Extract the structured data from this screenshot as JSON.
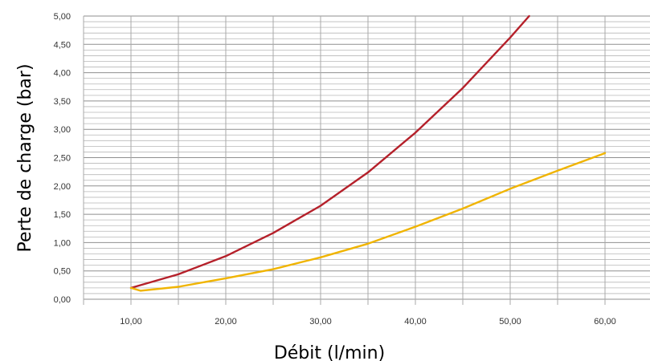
{
  "chart_data": {
    "type": "line",
    "title": "",
    "xlabel": "Débit (l/min)",
    "ylabel": "Perte de charge (bar)",
    "xlim": [
      5,
      65
    ],
    "ylim": [
      0,
      5
    ],
    "x_ticks": [
      {
        "value": 10,
        "label": "10,00"
      },
      {
        "value": 20,
        "label": "20,00"
      },
      {
        "value": 30,
        "label": "30,00"
      },
      {
        "value": 40,
        "label": "40,00"
      },
      {
        "value": 50,
        "label": "50,00"
      },
      {
        "value": 60,
        "label": "60,00"
      }
    ],
    "y_ticks": [
      {
        "value": 0.0,
        "label": "0,00"
      },
      {
        "value": 0.5,
        "label": "0,50"
      },
      {
        "value": 1.0,
        "label": "1,00"
      },
      {
        "value": 1.5,
        "label": "1,50"
      },
      {
        "value": 2.0,
        "label": "2,00"
      },
      {
        "value": 2.5,
        "label": "2,50"
      },
      {
        "value": 3.0,
        "label": "3,00"
      },
      {
        "value": 3.5,
        "label": "3,50"
      },
      {
        "value": 4.0,
        "label": "4,00"
      },
      {
        "value": 4.5,
        "label": "4,50"
      },
      {
        "value": 5.0,
        "label": "5,00"
      }
    ],
    "minor_grid_step": 0.1,
    "x_grid_step": 5,
    "grid": true,
    "series": [
      {
        "color": "#b5202a",
        "points": [
          [
            10,
            0.2
          ],
          [
            15,
            0.44
          ],
          [
            20,
            0.76
          ],
          [
            25,
            1.17
          ],
          [
            30,
            1.65
          ],
          [
            35,
            2.24
          ],
          [
            40,
            2.94
          ],
          [
            45,
            3.73
          ],
          [
            50,
            4.62
          ],
          [
            52,
            5.0
          ]
        ]
      },
      {
        "color": "#f0b400",
        "points": [
          [
            10,
            0.2
          ],
          [
            11,
            0.15
          ],
          [
            15,
            0.22
          ],
          [
            20,
            0.37
          ],
          [
            25,
            0.53
          ],
          [
            30,
            0.74
          ],
          [
            35,
            0.98
          ],
          [
            40,
            1.28
          ],
          [
            45,
            1.6
          ],
          [
            50,
            1.95
          ],
          [
            55,
            2.27
          ],
          [
            60,
            2.58
          ]
        ]
      }
    ]
  }
}
